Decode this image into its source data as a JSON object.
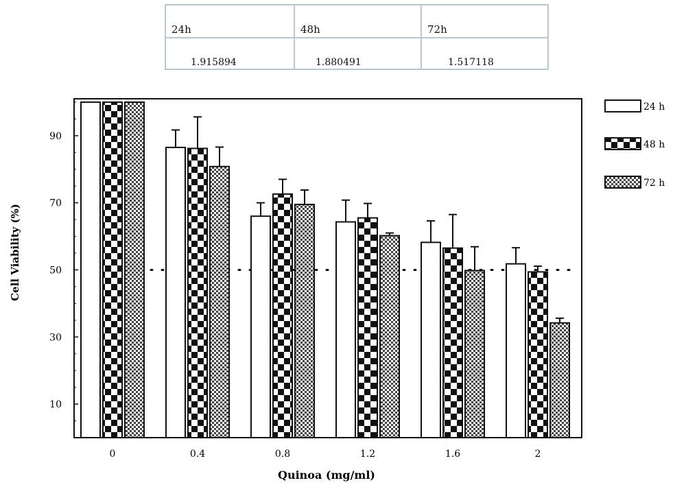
{
  "table": {
    "headers": [
      "24h",
      "48h",
      "72h"
    ],
    "values": [
      "1.915894",
      "1.880491",
      "1.517118"
    ]
  },
  "chart_data": {
    "type": "bar",
    "xlabel": "Quinoa (mg/ml)",
    "ylabel": "Cell Viability (%)",
    "categories": [
      "0",
      "0.4",
      "0.8",
      "1.2",
      "1.6",
      "2"
    ],
    "y_ticks": [
      10,
      30,
      50,
      70,
      90
    ],
    "ylim": [
      0,
      101
    ],
    "reference_line": 50,
    "legend_position": "right",
    "series": [
      {
        "name": "24 h",
        "fill": "white",
        "values": [
          100,
          86.5,
          66,
          64.3,
          58.2,
          51.8
        ],
        "errors": [
          0,
          5.2,
          4.0,
          6.5,
          6.4,
          4.8
        ]
      },
      {
        "name": "48 h",
        "fill": "checker",
        "values": [
          100,
          86.2,
          72.6,
          65.5,
          56.5,
          49.4
        ],
        "errors": [
          0,
          9.4,
          4.4,
          4.3,
          10.0,
          1.7
        ]
      },
      {
        "name": "72 h",
        "fill": "finecheck",
        "values": [
          100,
          80.8,
          69.5,
          60.2,
          49.8,
          34.2
        ],
        "errors": [
          0,
          5.8,
          4.3,
          0.8,
          7.1,
          1.4
        ]
      }
    ]
  }
}
